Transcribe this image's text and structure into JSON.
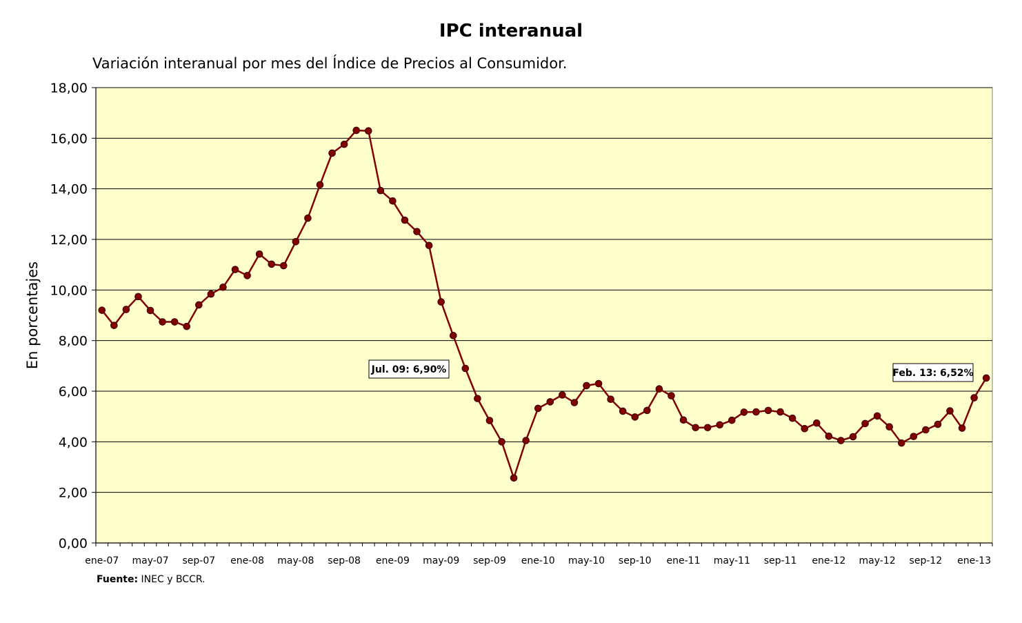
{
  "title": "IPC interanual",
  "subtitle": "Variación interanual por mes del Índice de Precios al Consumidor.",
  "source": {
    "label": "Fuente:",
    "text": " INEC y BCCR."
  },
  "colors": {
    "plot_background": "#ffffcc",
    "line": "#800000",
    "marker": "#800000",
    "grid": "#000000"
  },
  "chart_data": {
    "type": "line",
    "ylabel": "En porcentajes",
    "xlabel": "",
    "ylim": [
      0,
      18
    ],
    "yticks": [
      "0,00",
      "2,00",
      "4,00",
      "6,00",
      "8,00",
      "10,00",
      "12,00",
      "14,00",
      "16,00",
      "18,00"
    ],
    "xtick_labels": [
      "ene-07",
      "may-07",
      "sep-07",
      "ene-08",
      "may-08",
      "sep-08",
      "ene-09",
      "may-09",
      "sep-09",
      "ene-10",
      "may-10",
      "sep-10",
      "ene-11",
      "may-11",
      "sep-11",
      "ene-12",
      "may-12",
      "sep-12",
      "ene-13"
    ],
    "xtick_every_months": 4,
    "grid": "horizontal",
    "legend": "none",
    "start_month_label": "ene-07",
    "series": [
      {
        "values": [
          9.2,
          8.6,
          9.23,
          9.74,
          9.19,
          8.74,
          8.74,
          8.56,
          9.41,
          9.84,
          10.11,
          10.81,
          10.57,
          11.42,
          11.02,
          10.96,
          11.91,
          12.84,
          14.16,
          15.41,
          15.76,
          16.31,
          16.29,
          13.93,
          13.52,
          12.76,
          12.31,
          11.76,
          9.53,
          8.2,
          6.9,
          5.71,
          4.84,
          4.0,
          2.57,
          4.05,
          5.32,
          5.58,
          5.85,
          5.55,
          6.22,
          6.3,
          5.68,
          5.21,
          4.98,
          5.24,
          6.09,
          5.82,
          4.86,
          4.56,
          4.56,
          4.67,
          4.85,
          5.17,
          5.18,
          5.24,
          5.18,
          4.93,
          4.52,
          4.74,
          4.22,
          4.05,
          4.2,
          4.72,
          5.02,
          4.59,
          3.95,
          4.21,
          4.47,
          4.69,
          5.22,
          4.54,
          5.74,
          6.52
        ]
      }
    ],
    "annotations": [
      {
        "text": "Jul. 09: 6,90%",
        "index": 30
      },
      {
        "text": "Feb. 13: 6,52%",
        "index": 73
      }
    ]
  }
}
